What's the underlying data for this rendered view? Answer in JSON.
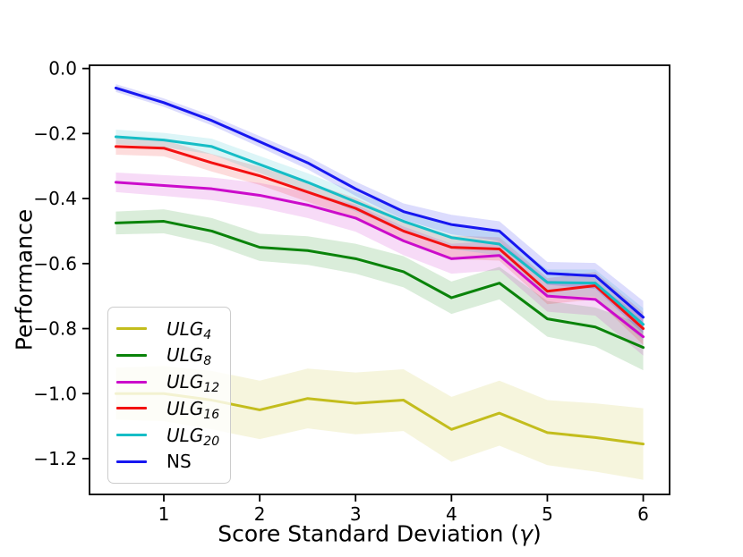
{
  "chart_data": {
    "type": "line",
    "title": "",
    "xlabel": "Score Standard Deviation (γ)",
    "xlabel_parts": {
      "prefix": "Score Standard Deviation (",
      "gamma": "γ",
      "suffix": ")"
    },
    "ylabel": "Performance",
    "x": [
      0.5,
      1,
      1.5,
      2,
      2.5,
      3,
      3.5,
      4,
      4.5,
      5,
      5.5,
      6
    ],
    "series": [
      {
        "name": "ULG4",
        "color": "#c3bd1d",
        "values": [
          -1.0,
          -1.0,
          -1.02,
          -1.05,
          -1.015,
          -1.03,
          -1.02,
          -1.11,
          -1.06,
          -1.12,
          -1.135,
          -1.155
        ],
        "err": [
          0.08,
          0.085,
          0.09,
          0.09,
          0.092,
          0.095,
          0.095,
          0.1,
          0.1,
          0.1,
          0.105,
          0.11
        ]
      },
      {
        "name": "ULG8",
        "color": "#0a830a",
        "values": [
          -0.475,
          -0.47,
          -0.5,
          -0.55,
          -0.56,
          -0.585,
          -0.625,
          -0.705,
          -0.66,
          -0.77,
          -0.795,
          -0.858
        ],
        "err": [
          0.035,
          0.037,
          0.04,
          0.042,
          0.044,
          0.046,
          0.048,
          0.05,
          0.05,
          0.055,
          0.06,
          0.07
        ]
      },
      {
        "name": "ULG12",
        "color": "#cb0ccb",
        "values": [
          -0.35,
          -0.36,
          -0.37,
          -0.39,
          -0.42,
          -0.46,
          -0.53,
          -0.585,
          -0.575,
          -0.7,
          -0.71,
          -0.825
        ],
        "err": [
          0.03,
          0.032,
          0.035,
          0.038,
          0.04,
          0.042,
          0.044,
          0.046,
          0.045,
          0.048,
          0.05,
          0.058
        ]
      },
      {
        "name": "ULG16",
        "color": "#f31111",
        "values": [
          -0.24,
          -0.245,
          -0.29,
          -0.33,
          -0.38,
          -0.43,
          -0.5,
          -0.55,
          -0.555,
          -0.685,
          -0.668,
          -0.8
        ],
        "err": [
          0.025,
          0.025,
          0.027,
          0.028,
          0.03,
          0.032,
          0.034,
          0.036,
          0.036,
          0.04,
          0.042,
          0.05
        ]
      },
      {
        "name": "ULG20",
        "color": "#16bdc6",
        "values": [
          -0.21,
          -0.22,
          -0.24,
          -0.295,
          -0.35,
          -0.41,
          -0.47,
          -0.52,
          -0.54,
          -0.658,
          -0.66,
          -0.787
        ],
        "err": [
          0.022,
          0.022,
          0.024,
          0.026,
          0.028,
          0.03,
          0.032,
          0.035,
          0.035,
          0.04,
          0.042,
          0.05
        ]
      },
      {
        "name": "NS",
        "color": "#1717f0",
        "values": [
          -0.06,
          -0.105,
          -0.16,
          -0.225,
          -0.29,
          -0.37,
          -0.44,
          -0.48,
          -0.5,
          -0.63,
          -0.638,
          -0.765
        ],
        "err": [
          0.012,
          0.013,
          0.015,
          0.017,
          0.02,
          0.022,
          0.025,
          0.03,
          0.03,
          0.035,
          0.04,
          0.05
        ]
      }
    ],
    "xlim": [
      0.225,
      6.275
    ],
    "ylim": [
      -1.31,
      0.01
    ],
    "xticks": {
      "values": [
        1,
        2,
        3,
        4,
        5,
        6
      ],
      "labels": [
        "1",
        "2",
        "3",
        "4",
        "5",
        "6"
      ]
    },
    "yticks": {
      "values": [
        0.0,
        -0.2,
        -0.4,
        -0.6,
        -0.8,
        -1.0,
        -1.2
      ],
      "labels": [
        "0.0",
        "−0.2",
        "−0.4",
        "−0.6",
        "−0.8",
        "−1.0",
        "−1.2"
      ]
    },
    "grid": false,
    "legend_position": "lower left",
    "band_alpha": 0.15,
    "axis_color": "#000000"
  },
  "legend": {
    "items": [
      {
        "main": "ULG",
        "sub": "4",
        "color": "#c3bd1d"
      },
      {
        "main": "ULG",
        "sub": "8",
        "color": "#0a830a"
      },
      {
        "main": "ULG",
        "sub": "12",
        "color": "#cb0ccb"
      },
      {
        "main": "ULG",
        "sub": "16",
        "color": "#f31111"
      },
      {
        "main": "ULG",
        "sub": "20",
        "color": "#16bdc6"
      },
      {
        "main": "NS",
        "sub": "",
        "color": "#1717f0"
      }
    ]
  }
}
